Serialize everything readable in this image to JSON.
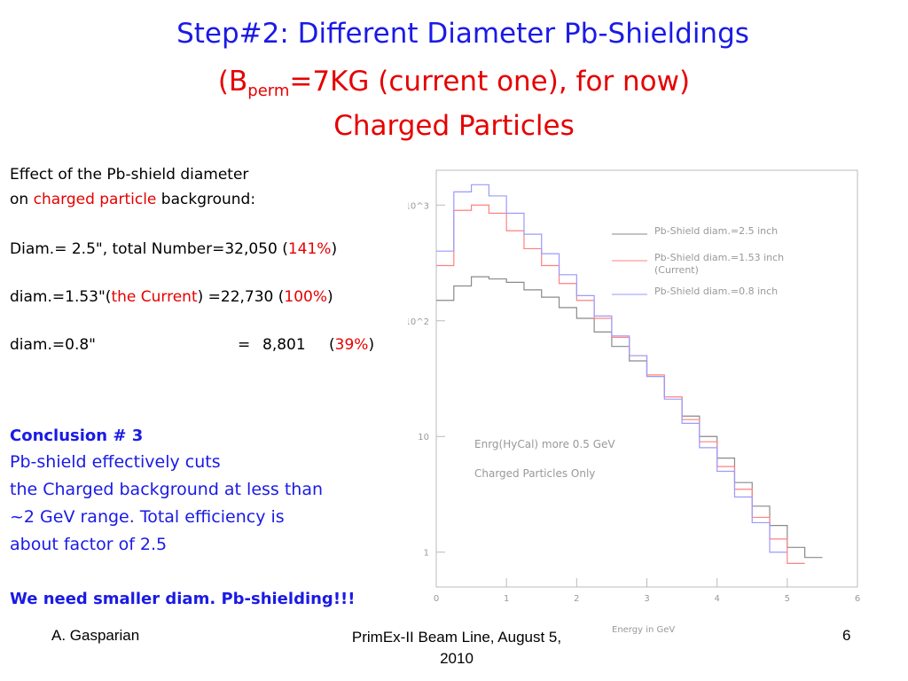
{
  "title": {
    "line1": "Step#2: Different Diameter Pb-Shieldings",
    "line2_prefix": "(B",
    "line2_sub": "perm",
    "line2_suffix": "=7KG (current one), for now)",
    "line3": "Charged Particles"
  },
  "left": {
    "intro1": "Effect of the Pb-shield diameter",
    "intro2_prefix": "on ",
    "intro2_red": "charged particle",
    "intro2_suffix": " background:",
    "row1_prefix": "Diam.= 2.5\", total Number=32,050 (",
    "row1_pct": "141%",
    "row1_suffix": ")",
    "row2_prefix": "diam.=1.53\"(",
    "row2_red": "the Current",
    "row2_mid": ") =22,730 (",
    "row2_pct": "100%",
    "row2_suffix": ")",
    "row3_label": "diam.=0.8\"",
    "row3_eq": "=",
    "row3_value": "8,801",
    "row3_pct": "39%",
    "row3_open": "(",
    "row3_close": ")",
    "conclusion_title": "Conclusion # 3",
    "conclusion_lines": [
      "Pb-shield effectively cuts",
      "the Charged background at less than",
      "~2 GeV range. Total efficiency is",
      "about factor of 2.5"
    ],
    "final": "We need smaller diam. Pb-shielding!!!"
  },
  "footer": {
    "author": "A. Gasparian",
    "event_line1": "PrimEx-II Beam Line, August 5,",
    "event_line2": "2010",
    "page": "6"
  },
  "chart_data": {
    "type": "line",
    "xlabel": "Energy in GeV",
    "ylabel": "",
    "xlim": [
      0,
      6
    ],
    "log_y": true,
    "ylim": [
      0.5,
      2000
    ],
    "x_ticks": [
      "0",
      "1",
      "2",
      "3",
      "4",
      "5",
      "6"
    ],
    "y_ticks": [
      {
        "label": "1",
        "value": 1
      },
      {
        "label": "10",
        "value": 10
      },
      {
        "label": "10^2",
        "value": 100
      },
      {
        "label": "10^3",
        "value": 1000
      }
    ],
    "annotations": [
      "Enrg(HyCal) more 0.5 GeV",
      "Charged Particles Only"
    ],
    "legend_position": "top-right",
    "series": [
      {
        "name": "Pb-Shield diam.=2.5 inch",
        "color": "#8a8a8a",
        "x": [
          0,
          0.25,
          0.5,
          0.75,
          1.0,
          1.25,
          1.5,
          1.75,
          2.0,
          2.25,
          2.5,
          2.75,
          3.0,
          3.25,
          3.5,
          3.75,
          4.0,
          4.25,
          4.5,
          4.75,
          5.0,
          5.25
        ],
        "y": [
          150,
          200,
          240,
          230,
          215,
          185,
          160,
          130,
          105,
          80,
          60,
          45,
          33,
          22,
          15,
          10,
          6.5,
          4,
          2.5,
          1.7,
          1.1,
          0.9
        ]
      },
      {
        "name": "Pb-Shield diam.=1.53 inch (Current)",
        "color": "#ff8080",
        "x": [
          0,
          0.25,
          0.5,
          0.75,
          1.0,
          1.25,
          1.5,
          1.75,
          2.0,
          2.25,
          2.5,
          2.75,
          3.0,
          3.25,
          3.5,
          3.75,
          4.0,
          4.25,
          4.5,
          4.75,
          5.0
        ],
        "y": [
          300,
          900,
          1000,
          850,
          600,
          420,
          300,
          210,
          150,
          105,
          72,
          50,
          34,
          22,
          14,
          9,
          5.5,
          3.5,
          2,
          1.3,
          0.8
        ]
      },
      {
        "name": "Pb-Shield diam.=0.8 inch",
        "color": "#9a9aff",
        "x": [
          0,
          0.25,
          0.5,
          0.75,
          1.0,
          1.25,
          1.5,
          1.75,
          2.0,
          2.25,
          2.5,
          2.75,
          3.0,
          3.25,
          3.5,
          3.75,
          4.0,
          4.25,
          4.5,
          4.75
        ],
        "y": [
          400,
          1300,
          1500,
          1200,
          850,
          560,
          380,
          250,
          165,
          110,
          74,
          50,
          33,
          21,
          13,
          8,
          5,
          3,
          1.8,
          1.0
        ]
      }
    ]
  }
}
